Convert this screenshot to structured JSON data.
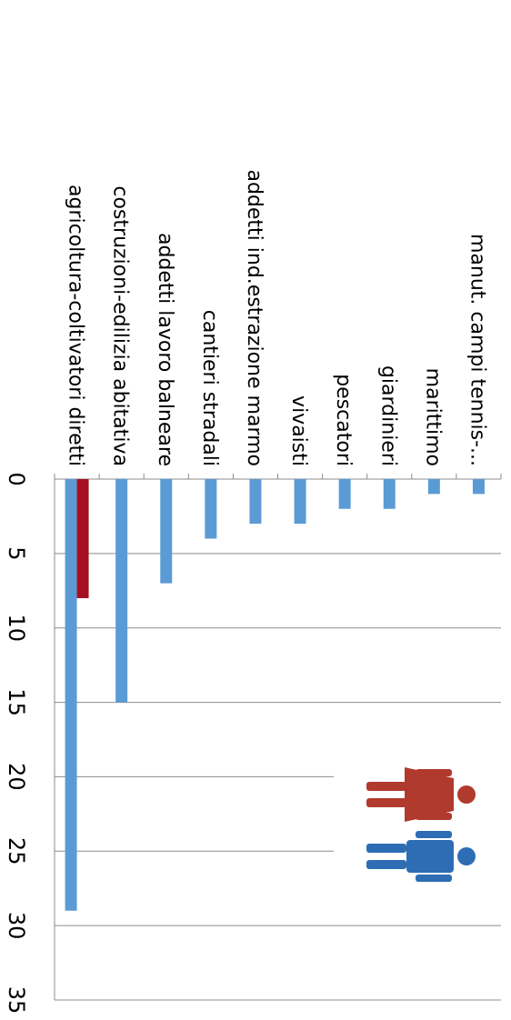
{
  "chart_data": {
    "type": "bar",
    "orientation": "horizontal",
    "categories": [
      "agricoltura-coltivatori diretti",
      "costruzioni-edilizia abitativa",
      "addetti lavoro balneare",
      "cantieri stradali",
      "addetti ind.estrazione marmo",
      "vivaisti",
      "pescatori",
      "giardinieri",
      "marittimo",
      "manut. campi tennis-..."
    ],
    "series": [
      {
        "values": [
          29,
          15,
          7,
          4,
          3,
          3,
          2,
          2,
          1,
          1
        ],
        "color": "#5b9bd5"
      },
      {
        "values": [
          8,
          0,
          0,
          0,
          0,
          0,
          0,
          0,
          0,
          0
        ],
        "color": "#a50f21"
      }
    ],
    "x_ticks": [
      "0",
      "5",
      "10",
      "15",
      "20",
      "25",
      "30",
      "35"
    ],
    "xlim": [
      0,
      35
    ],
    "grid": true,
    "legend_icons": [
      {
        "name": "female-figure-icon",
        "color": "#b03a2e"
      },
      {
        "name": "male-figure-icon",
        "color": "#2e6db4"
      }
    ]
  }
}
